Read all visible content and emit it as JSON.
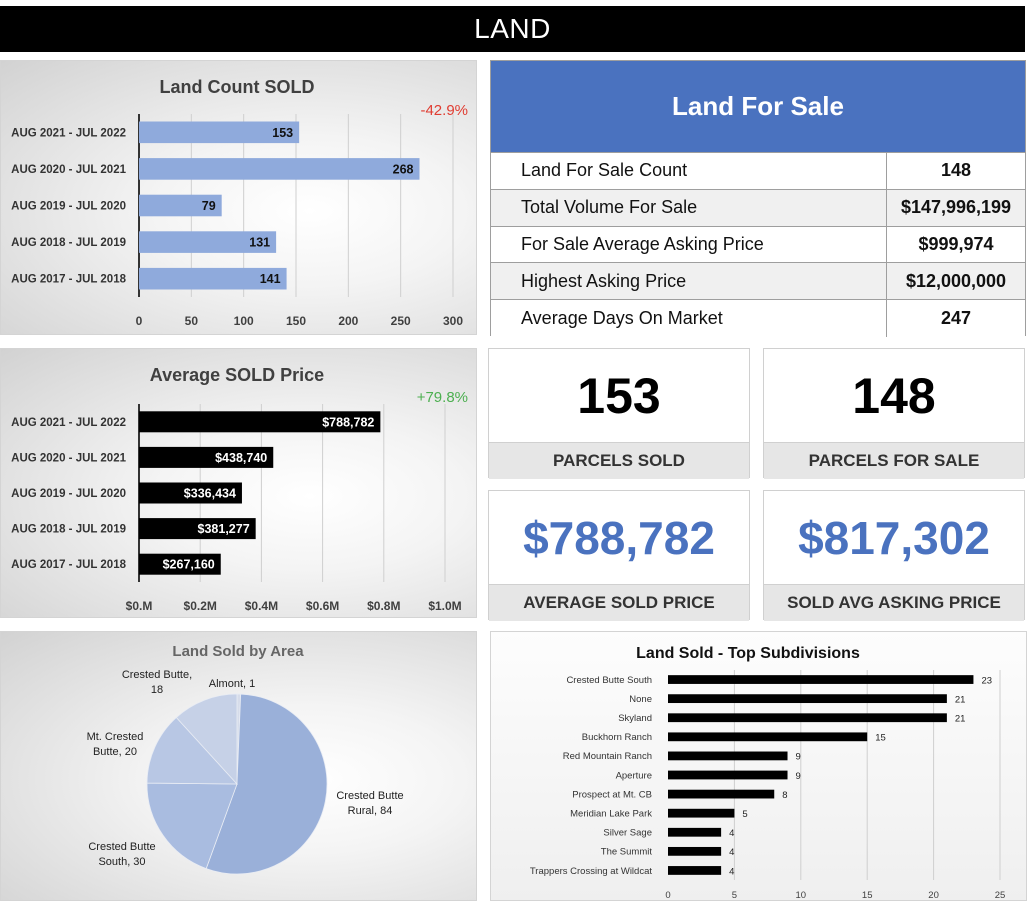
{
  "header": {
    "title": "LAND"
  },
  "for_sale": {
    "title": "Land For Sale",
    "rows": [
      {
        "label": "Land For Sale Count",
        "value": "148"
      },
      {
        "label": "Total Volume For Sale",
        "value": "$147,996,199"
      },
      {
        "label": "For Sale Average Asking Price",
        "value": "$999,974"
      },
      {
        "label": "Highest Asking Price",
        "value": "$12,000,000"
      },
      {
        "label": "Average Days On Market",
        "value": "247"
      }
    ]
  },
  "kpis": [
    {
      "value": "153",
      "label": "PARCELS SOLD",
      "style": "black"
    },
    {
      "value": "148",
      "label": "PARCELS FOR SALE",
      "style": "black"
    },
    {
      "value": "$788,782",
      "label": "AVERAGE SOLD PRICE",
      "style": "blue"
    },
    {
      "value": "$817,302",
      "label": "SOLD AVG ASKING PRICE",
      "style": "blue"
    }
  ],
  "colors": {
    "accent_blue": "#4a72bf",
    "bar_blue": "#8faadc",
    "negative": "#e03c31",
    "positive": "#4caf50"
  },
  "chart_data": [
    {
      "id": "count",
      "type": "bar",
      "orientation": "horizontal",
      "title": "Land Count SOLD",
      "annotation": "-42.9%",
      "annotation_color": "#e03c31",
      "categories": [
        "AUG 2021 - JUL 2022",
        "AUG 2020 - JUL 2021",
        "AUG 2019 - JUL 2020",
        "AUG 2018 - JUL 2019",
        "AUG 2017 - JUL 2018"
      ],
      "values": [
        153,
        268,
        79,
        131,
        141
      ],
      "value_labels": [
        "153",
        "268",
        "79",
        "131",
        "141"
      ],
      "xlim": [
        0,
        300
      ],
      "ticks": [
        0,
        50,
        100,
        150,
        200,
        250,
        300
      ],
      "tick_labels": [
        "0",
        "50",
        "100",
        "150",
        "200",
        "250",
        "300"
      ],
      "bar_color": "#8faadc",
      "label_color": "#111111",
      "grid": true
    },
    {
      "id": "price",
      "type": "bar",
      "orientation": "horizontal",
      "title": "Average SOLD Price",
      "annotation": "+79.8%",
      "annotation_color": "#4caf50",
      "categories": [
        "AUG 2021 - JUL 2022",
        "AUG 2020 - JUL 2021",
        "AUG 2019 - JUL 2020",
        "AUG 2018 - JUL 2019",
        "AUG 2017 - JUL 2018"
      ],
      "values": [
        788782,
        438740,
        336434,
        381277,
        267160
      ],
      "value_labels": [
        "$788,782",
        "$438,740",
        "$336,434",
        "$381,277",
        "$267,160"
      ],
      "xlim": [
        0,
        1000000
      ],
      "ticks": [
        0,
        200000,
        400000,
        600000,
        800000,
        1000000
      ],
      "tick_labels": [
        "$0.M",
        "$0.2M",
        "$0.4M",
        "$0.6M",
        "$0.8M",
        "$1.0M"
      ],
      "bar_color": "#000000",
      "label_color": "#ffffff",
      "grid": true
    },
    {
      "id": "area",
      "type": "pie",
      "title": "Land Sold by Area",
      "slices": [
        {
          "label": "Almont",
          "value": 1,
          "color": "#d6dcea"
        },
        {
          "label": "Crested Butte Rural",
          "value": 84,
          "color": "#9ab0d9"
        },
        {
          "label": "Crested Butte South",
          "value": 30,
          "color": "#a9bce0"
        },
        {
          "label": "Mt. Crested Butte",
          "value": 20,
          "color": "#b8c7e4"
        },
        {
          "label": "Crested Butte",
          "value": 18,
          "color": "#c6d1e7"
        }
      ],
      "data_labels": [
        [
          "Almont, 1"
        ],
        [
          "Crested Butte",
          "Rural, 84"
        ],
        [
          "Crested Butte",
          "South, 30"
        ],
        [
          "Mt. Crested",
          "Butte, 20"
        ],
        [
          "Crested Butte,",
          "18"
        ]
      ]
    },
    {
      "id": "subdiv",
      "type": "bar",
      "orientation": "horizontal",
      "title": "Land Sold - Top Subdivisions",
      "categories": [
        "Crested Butte South",
        "None",
        "Skyland",
        "Buckhorn Ranch",
        "Red Mountain Ranch",
        "Aperture",
        "Prospect at Mt. CB",
        "Meridian Lake Park",
        "Silver Sage",
        "The Summit",
        "Trappers Crossing at Wildcat"
      ],
      "values": [
        23,
        21,
        21,
        15,
        9,
        9,
        8,
        5,
        4,
        4,
        4
      ],
      "value_labels": [
        "23",
        "21",
        "21",
        "15",
        "9",
        "9",
        "8",
        "5",
        "4",
        "4",
        "4"
      ],
      "xlim": [
        0,
        25
      ],
      "ticks": [
        0,
        5,
        10,
        15,
        20,
        25
      ],
      "tick_labels": [
        "0",
        "5",
        "10",
        "15",
        "20",
        "25"
      ],
      "bar_color": "#000000",
      "grid": true
    }
  ]
}
